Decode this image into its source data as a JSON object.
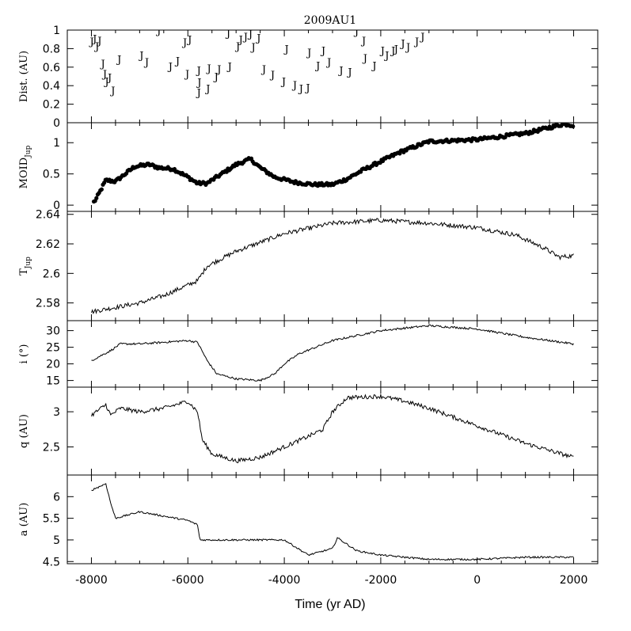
{
  "chart_data": {
    "type": "multi-panel",
    "title": "2009AU1",
    "xlabel": "Time (yr AD)",
    "xlim": [
      -8500,
      2500
    ],
    "xticks": [
      -8000,
      -6000,
      -4000,
      -2000,
      0,
      2000
    ],
    "xtick_labels": [
      "-8000",
      "-6000",
      "-4000",
      "-2000",
      "0",
      "2000"
    ],
    "panels": [
      {
        "id": "dist",
        "type": "scatter",
        "ylabel": "Dist. (AU)",
        "ylim": [
          0,
          1
        ],
        "yticks": [
          0,
          0.2,
          0.4,
          0.6,
          0.8,
          1
        ],
        "ytick_labels": [
          "0",
          "0.2",
          "0.4",
          "0.6",
          "0.8",
          "1"
        ],
        "marker_text": "J",
        "points": [
          [
            -7990,
            0.88
          ],
          [
            -7930,
            0.91
          ],
          [
            -7880,
            0.83
          ],
          [
            -7830,
            0.89
          ],
          [
            -7760,
            0.64
          ],
          [
            -7720,
            0.53
          ],
          [
            -7680,
            0.45
          ],
          [
            -7620,
            0.49
          ],
          [
            -7550,
            0.35
          ],
          [
            -7420,
            0.69
          ],
          [
            -6960,
            0.73
          ],
          [
            -6850,
            0.66
          ],
          [
            -6600,
            1.0
          ],
          [
            -6360,
            0.61
          ],
          [
            -6210,
            0.67
          ],
          [
            -6060,
            0.87
          ],
          [
            -5960,
            0.9
          ],
          [
            -6010,
            0.53
          ],
          [
            -5770,
            0.33
          ],
          [
            -5770,
            0.57
          ],
          [
            -5760,
            0.44
          ],
          [
            -5580,
            0.37
          ],
          [
            -5560,
            0.59
          ],
          [
            -5410,
            0.5
          ],
          [
            -5350,
            0.58
          ],
          [
            -5130,
            0.61
          ],
          [
            -5160,
            0.97
          ],
          [
            -4960,
            0.83
          ],
          [
            -4900,
            0.9
          ],
          [
            -4800,
            0.93
          ],
          [
            -4700,
            0.96
          ],
          [
            -4640,
            0.82
          ],
          [
            -4530,
            0.92
          ],
          [
            -4420,
            0.58
          ],
          [
            -4240,
            0.52
          ],
          [
            -4010,
            0.45
          ],
          [
            -3950,
            0.8
          ],
          [
            -3780,
            0.41
          ],
          [
            -3650,
            0.37
          ],
          [
            -3510,
            0.38
          ],
          [
            -3480,
            0.76
          ],
          [
            -3300,
            0.62
          ],
          [
            -3190,
            0.78
          ],
          [
            -3070,
            0.66
          ],
          [
            -2820,
            0.57
          ],
          [
            -2640,
            0.55
          ],
          [
            -2500,
            0.99
          ],
          [
            -2350,
            0.89
          ],
          [
            -2320,
            0.7
          ],
          [
            -2130,
            0.62
          ],
          [
            -1960,
            0.78
          ],
          [
            -1870,
            0.73
          ],
          [
            -1740,
            0.78
          ],
          [
            -1680,
            0.8
          ],
          [
            -1540,
            0.86
          ],
          [
            -1430,
            0.82
          ],
          [
            -1250,
            0.88
          ],
          [
            -1130,
            0.93
          ]
        ]
      },
      {
        "id": "moid",
        "type": "scatter",
        "ylabel": "MOID_Jup",
        "ylabel_main": "MOID",
        "ylabel_sub": "Jup",
        "ylim": [
          -0.1,
          1.32
        ],
        "yticks": [
          0,
          0.5,
          1
        ],
        "ytick_labels": [
          "0",
          "0.5",
          "1"
        ],
        "keypoints": [
          [
            -7950,
            0.05
          ],
          [
            -7900,
            0.1
          ],
          [
            -7800,
            0.25
          ],
          [
            -7700,
            0.4
          ],
          [
            -7500,
            0.38
          ],
          [
            -7300,
            0.5
          ],
          [
            -7100,
            0.62
          ],
          [
            -6800,
            0.65
          ],
          [
            -6600,
            0.6
          ],
          [
            -6300,
            0.58
          ],
          [
            -6000,
            0.45
          ],
          [
            -5800,
            0.35
          ],
          [
            -5600,
            0.35
          ],
          [
            -5300,
            0.5
          ],
          [
            -5000,
            0.65
          ],
          [
            -4700,
            0.74
          ],
          [
            -4500,
            0.6
          ],
          [
            -4200,
            0.45
          ],
          [
            -3800,
            0.37
          ],
          [
            -3400,
            0.33
          ],
          [
            -3000,
            0.33
          ],
          [
            -2700,
            0.42
          ],
          [
            -2400,
            0.55
          ],
          [
            -2000,
            0.7
          ],
          [
            -1600,
            0.85
          ],
          [
            -1000,
            1.02
          ],
          [
            0,
            1.05
          ],
          [
            1000,
            1.15
          ],
          [
            1800,
            1.3
          ],
          [
            2000,
            1.28
          ]
        ],
        "jitter": 0.025
      },
      {
        "id": "tjup",
        "type": "line",
        "ylabel": "T_Jup",
        "ylabel_main": "T",
        "ylabel_sub": "Jup",
        "ylim": [
          2.568,
          2.642
        ],
        "yticks": [
          2.58,
          2.6,
          2.62,
          2.64
        ],
        "ytick_labels": [
          "2.58",
          "2.6",
          "2.62",
          "2.64"
        ],
        "keypoints": [
          [
            -8000,
            2.574
          ],
          [
            -7000,
            2.58
          ],
          [
            -6500,
            2.585
          ],
          [
            -5800,
            2.595
          ],
          [
            -5600,
            2.605
          ],
          [
            -5000,
            2.615
          ],
          [
            -4000,
            2.627
          ],
          [
            -3000,
            2.634
          ],
          [
            -2000,
            2.636
          ],
          [
            -1000,
            2.634
          ],
          [
            0,
            2.631
          ],
          [
            800,
            2.626
          ],
          [
            1400,
            2.617
          ],
          [
            1700,
            2.611
          ],
          [
            2000,
            2.612
          ]
        ],
        "jitter": 0.0015
      },
      {
        "id": "incl",
        "type": "line",
        "ylabel": "i (°)",
        "ylim": [
          13,
          33
        ],
        "yticks": [
          15,
          20,
          25,
          30
        ],
        "ytick_labels": [
          "15",
          "20",
          "25",
          "30"
        ],
        "keypoints": [
          [
            -8000,
            21
          ],
          [
            -7600,
            24
          ],
          [
            -7400,
            26
          ],
          [
            -7000,
            26
          ],
          [
            -6500,
            26.5
          ],
          [
            -6000,
            27
          ],
          [
            -5800,
            26.5
          ],
          [
            -5600,
            21
          ],
          [
            -5400,
            17
          ],
          [
            -5000,
            15.5
          ],
          [
            -4500,
            15
          ],
          [
            -4200,
            17
          ],
          [
            -4000,
            20
          ],
          [
            -3700,
            23
          ],
          [
            -3000,
            27
          ],
          [
            -2000,
            30
          ],
          [
            -1000,
            31.5
          ],
          [
            0,
            30.5
          ],
          [
            1000,
            28
          ],
          [
            2000,
            26
          ]
        ],
        "jitter": 0.3
      },
      {
        "id": "q",
        "type": "line",
        "ylabel": "q (AU)",
        "ylim": [
          2.1,
          3.35
        ],
        "yticks": [
          2.5,
          3
        ],
        "ytick_labels": [
          "2.5",
          "3"
        ],
        "keypoints": [
          [
            -8000,
            2.95
          ],
          [
            -7700,
            3.1
          ],
          [
            -7600,
            2.95
          ],
          [
            -7400,
            3.05
          ],
          [
            -7000,
            3.0
          ],
          [
            -6500,
            3.05
          ],
          [
            -6000,
            3.15
          ],
          [
            -5800,
            3.0
          ],
          [
            -5700,
            2.6
          ],
          [
            -5500,
            2.4
          ],
          [
            -5000,
            2.3
          ],
          [
            -4500,
            2.35
          ],
          [
            -4000,
            2.5
          ],
          [
            -3500,
            2.65
          ],
          [
            -3200,
            2.75
          ],
          [
            -3000,
            3.0
          ],
          [
            -2700,
            3.2
          ],
          [
            -2000,
            3.22
          ],
          [
            -1500,
            3.15
          ],
          [
            -1000,
            3.05
          ],
          [
            0,
            2.8
          ],
          [
            1000,
            2.55
          ],
          [
            2000,
            2.35
          ]
        ],
        "jitter": 0.03
      },
      {
        "id": "a",
        "type": "line",
        "ylabel": "a (AU)",
        "ylim": [
          4.45,
          6.5
        ],
        "yticks": [
          4.5,
          5,
          5.5,
          6
        ],
        "ytick_labels": [
          "4.5",
          "5",
          "5.5",
          "6"
        ],
        "keypoints": [
          [
            -8000,
            6.15
          ],
          [
            -7700,
            6.3
          ],
          [
            -7600,
            5.85
          ],
          [
            -7500,
            5.5
          ],
          [
            -7000,
            5.65
          ],
          [
            -6500,
            5.55
          ],
          [
            -6000,
            5.45
          ],
          [
            -5800,
            5.35
          ],
          [
            -5750,
            5.0
          ],
          [
            -5000,
            5.0
          ],
          [
            -4000,
            5.0
          ],
          [
            -3500,
            4.65
          ],
          [
            -3000,
            4.8
          ],
          [
            -2900,
            5.05
          ],
          [
            -2500,
            4.75
          ],
          [
            -2000,
            4.65
          ],
          [
            -1000,
            4.55
          ],
          [
            0,
            4.55
          ],
          [
            1000,
            4.6
          ],
          [
            2000,
            4.6
          ]
        ],
        "jitter": 0.02
      }
    ]
  }
}
